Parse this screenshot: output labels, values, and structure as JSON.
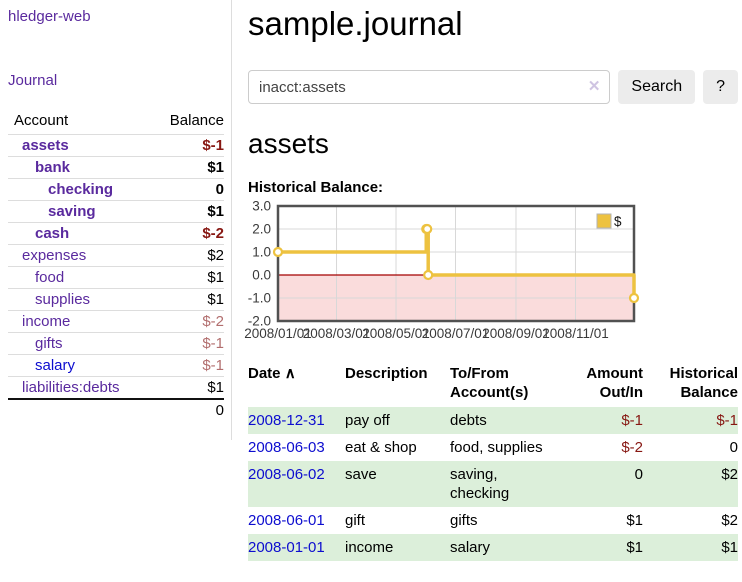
{
  "app": {
    "title": "hledger-web"
  },
  "colors": {
    "link_purple": "#5a2a9e",
    "link_blue": "#0d0dcf",
    "negative_strong": "#871712",
    "negative_muted": "#b26e6e",
    "row_stripe_green": "#dcefda",
    "chart_series_yellow": "#edc240",
    "chart_negative_fill": "#fadcdc",
    "chart_zero_line": "#a40000",
    "chart_border": "#515151",
    "chart_grid": "#d8d8d8",
    "button_bg": "#ececec"
  },
  "sidebar": {
    "journal_link": "Journal",
    "accounts_table": {
      "headers": {
        "account": "Account",
        "balance": "Balance"
      },
      "rows": [
        {
          "name": "assets",
          "depth": 1,
          "bold": true,
          "blue": false,
          "balance": "$-1",
          "balance_class": "neg"
        },
        {
          "name": "bank",
          "depth": 2,
          "bold": true,
          "blue": false,
          "balance": "$1",
          "balance_class": ""
        },
        {
          "name": "checking",
          "depth": 3,
          "bold": true,
          "blue": false,
          "balance": "0",
          "balance_class": ""
        },
        {
          "name": "saving",
          "depth": 3,
          "bold": true,
          "blue": false,
          "balance": "$1",
          "balance_class": ""
        },
        {
          "name": "cash",
          "depth": 2,
          "bold": true,
          "blue": false,
          "balance": "$-2",
          "balance_class": "neg"
        },
        {
          "name": "expenses",
          "depth": 1,
          "bold": false,
          "blue": false,
          "balance": "$2",
          "balance_class": ""
        },
        {
          "name": "food",
          "depth": 2,
          "bold": false,
          "blue": false,
          "balance": "$1",
          "balance_class": ""
        },
        {
          "name": "supplies",
          "depth": 2,
          "bold": false,
          "blue": false,
          "balance": "$1",
          "balance_class": ""
        },
        {
          "name": "income",
          "depth": 1,
          "bold": false,
          "blue": false,
          "balance": "$-2",
          "balance_class": "negm"
        },
        {
          "name": "gifts",
          "depth": 2,
          "bold": false,
          "blue": false,
          "balance": "$-1",
          "balance_class": "negm"
        },
        {
          "name": "salary",
          "depth": 2,
          "bold": false,
          "blue": true,
          "balance": "$-1",
          "balance_class": "negm"
        },
        {
          "name": "liabilities:debts",
          "depth": 1,
          "bold": false,
          "blue": false,
          "balance": "$1",
          "balance_class": ""
        }
      ],
      "total": "0"
    }
  },
  "main": {
    "title": "sample.journal",
    "search": {
      "value": "inacct:assets",
      "clear_icon": "✕",
      "button": "Search",
      "help_button": "?"
    },
    "account_heading": "assets",
    "chart_heading": "Historical Balance:"
  },
  "chart_data": {
    "type": "line",
    "style": "step",
    "title": "Historical Balance",
    "legend": {
      "label": "$",
      "position": "top-right"
    },
    "ylim": [
      -2,
      3
    ],
    "xlim_days": [
      0,
      365
    ],
    "grid": true,
    "y_ticks": [
      {
        "label": "3.0",
        "value": 3
      },
      {
        "label": "2.0",
        "value": 2
      },
      {
        "label": "1.0",
        "value": 1
      },
      {
        "label": "0.0",
        "value": 0
      },
      {
        "label": "-1.0",
        "value": -1
      },
      {
        "label": "-2.0",
        "value": -2
      }
    ],
    "x_ticks": [
      {
        "label": "2008/01/01",
        "day": 0
      },
      {
        "label": "2008/03/01",
        "day": 60
      },
      {
        "label": "2008/05/01",
        "day": 121
      },
      {
        "label": "2008/07/01",
        "day": 182
      },
      {
        "label": "2008/09/01",
        "day": 244
      },
      {
        "label": "2008/11/01",
        "day": 305
      }
    ],
    "negative_region": {
      "from": -2,
      "to": 0
    },
    "series": [
      {
        "name": "$",
        "points": [
          {
            "date": "2008-01-01",
            "day": 0,
            "value": 1
          },
          {
            "date": "2008-06-01",
            "day": 152,
            "value": 2
          },
          {
            "date": "2008-06-02",
            "day": 153,
            "value": 2
          },
          {
            "date": "2008-06-03",
            "day": 154,
            "value": 0
          },
          {
            "date": "2008-12-31",
            "day": 365,
            "value": -1
          }
        ]
      }
    ]
  },
  "register_table": {
    "headers": {
      "date": "Date",
      "sort_indicator": "∧",
      "description": "Description",
      "accounts": "To/From Account(s)",
      "amount": "Amount Out/In",
      "balance": "Historical Balance"
    },
    "rows": [
      {
        "date": "2008-12-31",
        "description": "pay off",
        "accounts": "debts",
        "amount": "$-1",
        "amount_negative": true,
        "balance": "$-1",
        "balance_negative": true
      },
      {
        "date": "2008-06-03",
        "description": "eat & shop",
        "accounts": "food, supplies",
        "amount": "$-2",
        "amount_negative": true,
        "balance": "0",
        "balance_negative": false
      },
      {
        "date": "2008-06-02",
        "description": "save",
        "accounts": "saving, checking",
        "amount": "0",
        "amount_negative": false,
        "balance": "$2",
        "balance_negative": false
      },
      {
        "date": "2008-06-01",
        "description": "gift",
        "accounts": "gifts",
        "amount": "$1",
        "amount_negative": false,
        "balance": "$2",
        "balance_negative": false
      },
      {
        "date": "2008-01-01",
        "description": "income",
        "accounts": "salary",
        "amount": "$1",
        "amount_negative": false,
        "balance": "$1",
        "balance_negative": false
      }
    ]
  }
}
